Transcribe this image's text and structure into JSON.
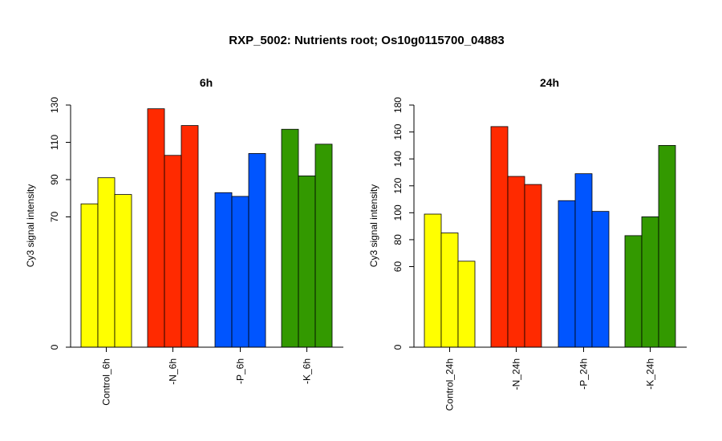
{
  "title": "RXP_5002: Nutrients root; Os10g0115700_04883",
  "chart_data": [
    {
      "type": "bar",
      "title": "6h",
      "ylabel": "Cy3 signal intensity",
      "ylim": [
        0,
        130
      ],
      "yticks": [
        0,
        70,
        90,
        110,
        130
      ],
      "y_scale": "broken",
      "groups": [
        {
          "label": "Control_6h",
          "color": "#FFFF00",
          "values": [
            77,
            91,
            82
          ]
        },
        {
          "label": "-N_6h",
          "color": "#FF2A00",
          "values": [
            128,
            103,
            119
          ]
        },
        {
          "label": "-P_6h",
          "color": "#0055FF",
          "values": [
            83,
            81,
            104
          ]
        },
        {
          "label": "-K_6h",
          "color": "#339900",
          "values": [
            117,
            92,
            109
          ]
        }
      ]
    },
    {
      "type": "bar",
      "title": "24h",
      "ylabel": "Cy3 signal intensity",
      "ylim": [
        0,
        180
      ],
      "yticks": [
        0,
        60,
        80,
        100,
        120,
        140,
        160,
        180
      ],
      "y_scale": "broken",
      "groups": [
        {
          "label": "Control_24h",
          "color": "#FFFF00",
          "values": [
            99,
            85,
            64
          ]
        },
        {
          "label": "-N_24h",
          "color": "#FF2A00",
          "values": [
            164,
            127,
            121
          ]
        },
        {
          "label": "-P_24h",
          "color": "#0055FF",
          "values": [
            109,
            129,
            101
          ]
        },
        {
          "label": "-K_24h",
          "color": "#339900",
          "values": [
            83,
            97,
            150
          ]
        }
      ]
    }
  ]
}
